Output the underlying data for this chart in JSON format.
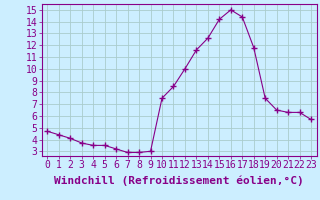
{
  "x": [
    0,
    1,
    2,
    3,
    4,
    5,
    6,
    7,
    8,
    9,
    10,
    11,
    12,
    13,
    14,
    15,
    16,
    17,
    18,
    19,
    20,
    21,
    22,
    23
  ],
  "y": [
    4.7,
    4.4,
    4.1,
    3.7,
    3.5,
    3.5,
    3.2,
    2.9,
    2.9,
    3.0,
    7.5,
    8.5,
    10.0,
    11.6,
    12.6,
    14.2,
    15.0,
    14.4,
    11.8,
    7.5,
    6.5,
    6.3,
    6.3,
    5.7
  ],
  "line_color": "#880088",
  "marker": "+",
  "bg_color": "#cceeff",
  "grid_color": "#aacccc",
  "xlabel": "Windchill (Refroidissement éolien,°C)",
  "ylabel_ticks": [
    3,
    4,
    5,
    6,
    7,
    8,
    9,
    10,
    11,
    12,
    13,
    14,
    15
  ],
  "xlim": [
    -0.5,
    23.5
  ],
  "ylim": [
    2.6,
    15.5
  ],
  "tick_fontsize": 7,
  "xlabel_fontsize": 8
}
